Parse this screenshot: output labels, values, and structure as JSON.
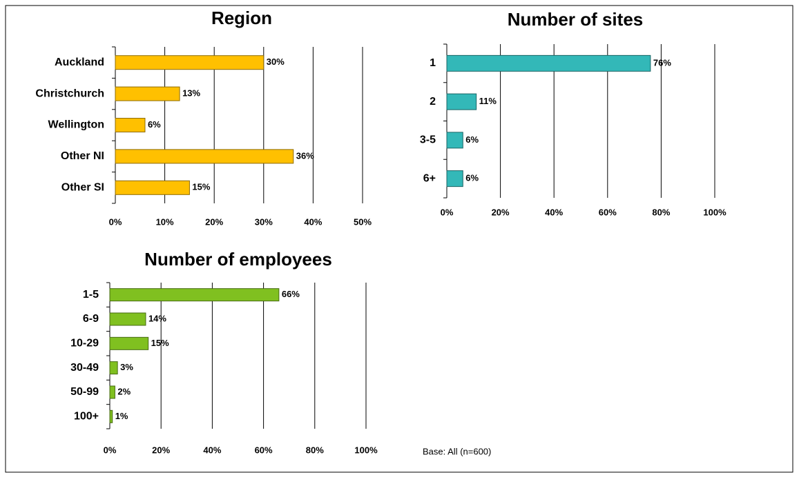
{
  "chart_data": [
    {
      "type": "bar",
      "orientation": "horizontal",
      "title": "Region",
      "categories": [
        "Auckland",
        "Christchurch",
        "Wellington",
        "Other NI",
        "Other SI"
      ],
      "values": [
        30,
        13,
        6,
        36,
        15
      ],
      "value_labels": [
        "30%",
        "13%",
        "6%",
        "36%",
        "15%"
      ],
      "color": "#ffc000",
      "xlim": [
        0,
        50
      ],
      "xticks": [
        {
          "value": 0,
          "label": "0%"
        },
        {
          "value": 10,
          "label": "10%"
        },
        {
          "value": 20,
          "label": "20%"
        },
        {
          "value": 30,
          "label": "30%"
        },
        {
          "value": 40,
          "label": "40%"
        },
        {
          "value": 50,
          "label": "50%"
        }
      ],
      "grid": true
    },
    {
      "type": "bar",
      "orientation": "horizontal",
      "title": "Number of sites",
      "categories": [
        "1",
        "2",
        "3-5",
        "6+"
      ],
      "values": [
        76,
        11,
        6,
        6
      ],
      "value_labels": [
        "76%",
        "11%",
        "6%",
        "6%"
      ],
      "color": "#33b8b8",
      "xlim": [
        0,
        100
      ],
      "xticks": [
        {
          "value": 0,
          "label": "0%"
        },
        {
          "value": 20,
          "label": "20%"
        },
        {
          "value": 40,
          "label": "40%"
        },
        {
          "value": 60,
          "label": "60%"
        },
        {
          "value": 80,
          "label": "80%"
        },
        {
          "value": 100,
          "label": "100%"
        }
      ],
      "grid": true
    },
    {
      "type": "bar",
      "orientation": "horizontal",
      "title": "Number of employees",
      "categories": [
        "1-5",
        "6-9",
        "10-29",
        "30-49",
        "50-99",
        "100+"
      ],
      "values": [
        66,
        14,
        15,
        3,
        2,
        1
      ],
      "value_labels": [
        "66%",
        "14%",
        "15%",
        "3%",
        "2%",
        "1%"
      ],
      "color": "#80c020",
      "xlim": [
        0,
        100
      ],
      "xticks": [
        {
          "value": 0,
          "label": "0%"
        },
        {
          "value": 20,
          "label": "20%"
        },
        {
          "value": 40,
          "label": "40%"
        },
        {
          "value": 60,
          "label": "60%"
        },
        {
          "value": 80,
          "label": "80%"
        },
        {
          "value": 100,
          "label": "100%"
        }
      ],
      "grid": true
    }
  ],
  "footnote": "Base: All (n=600)"
}
